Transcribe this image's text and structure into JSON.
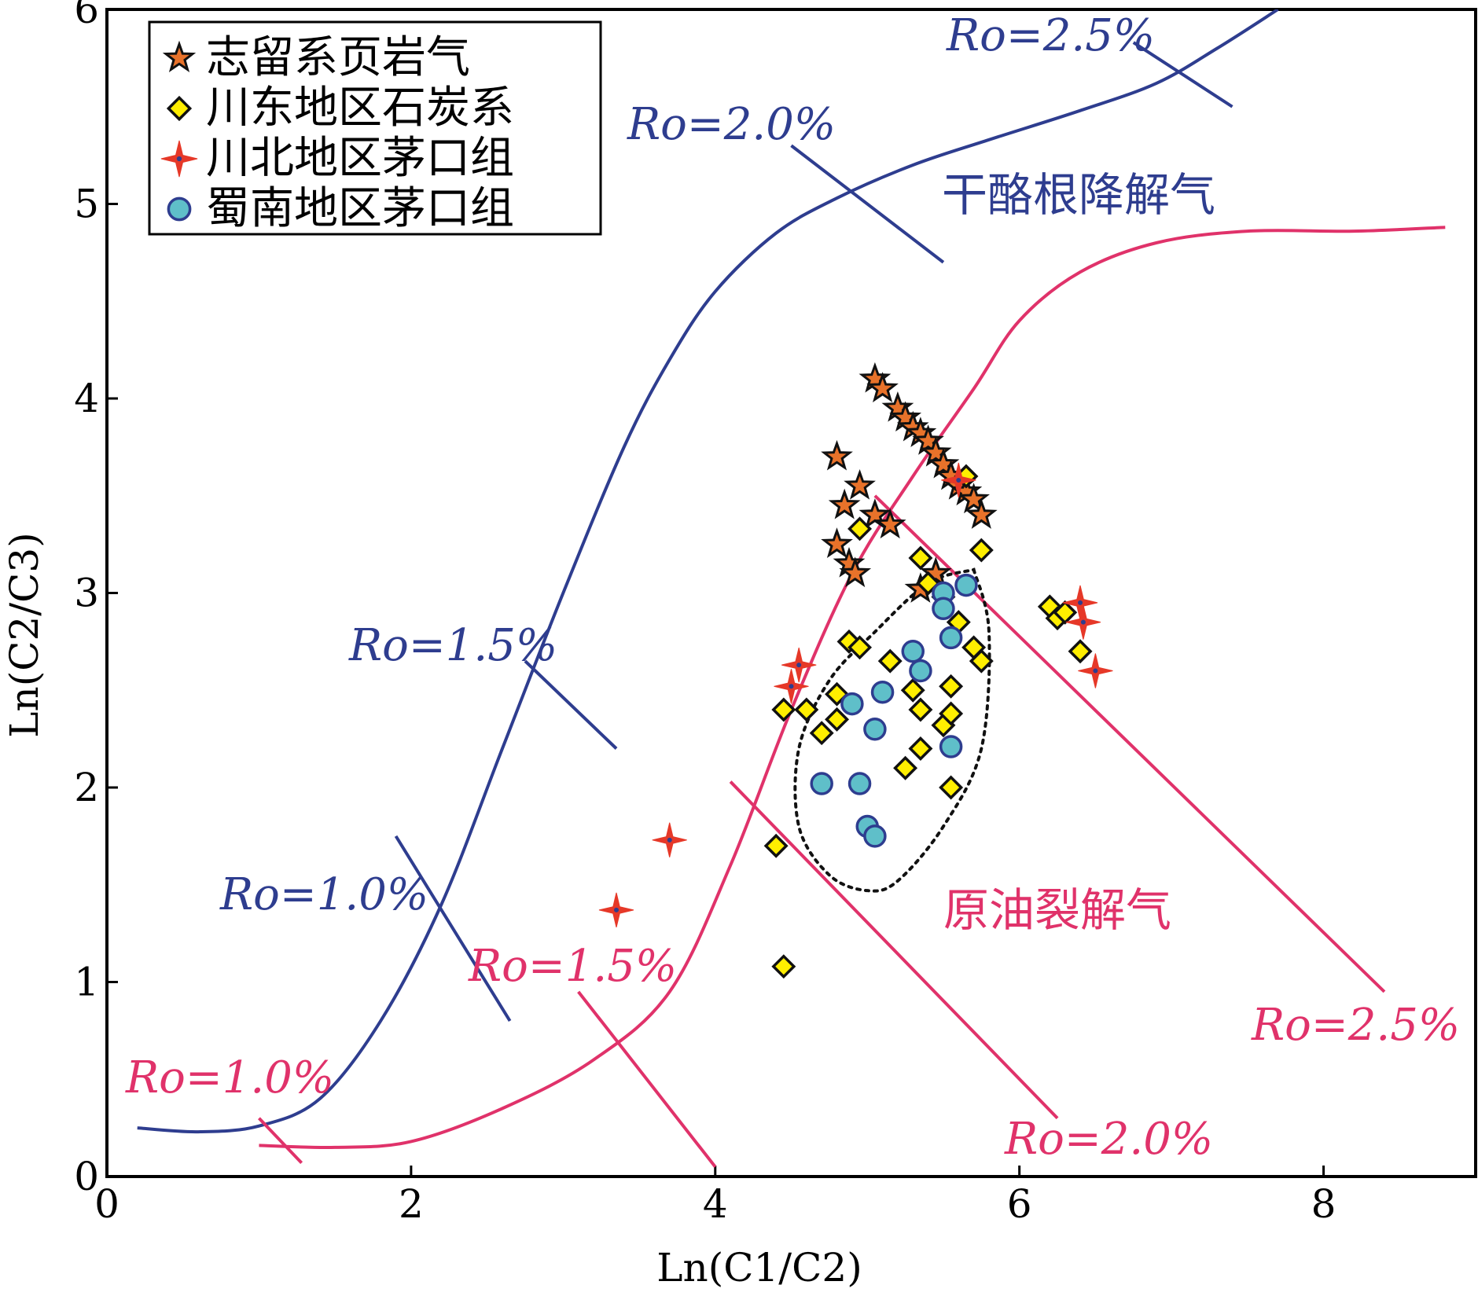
{
  "chart_data": {
    "type": "scatter",
    "title": "",
    "xlabel": "Ln(C1/C2)",
    "ylabel": "Ln(C2/C3)",
    "xlim": [
      0,
      9
    ],
    "ylim": [
      0,
      6
    ],
    "x_ticks": [
      "0",
      "2",
      "4",
      "6",
      "8"
    ],
    "y_ticks": [
      "0",
      "1",
      "2",
      "3",
      "4",
      "5",
      "6"
    ],
    "grid": false,
    "legend_position": "top-left",
    "colors": {
      "kerogen_curve": "#2e3d8f",
      "oil_curve": "#e0326a",
      "star_fill": "#e8722a",
      "diamond_fill": "#ffee00",
      "sparkle_fill": "#e63828",
      "circle_fill": "#5fbfc9"
    },
    "series": [
      {
        "name": "志留系页岩气",
        "marker": "star",
        "points": [
          [
            5.05,
            4.1
          ],
          [
            5.1,
            4.05
          ],
          [
            5.2,
            3.95
          ],
          [
            5.25,
            3.9
          ],
          [
            5.3,
            3.85
          ],
          [
            5.35,
            3.82
          ],
          [
            5.4,
            3.78
          ],
          [
            5.45,
            3.72
          ],
          [
            5.5,
            3.66
          ],
          [
            5.55,
            3.6
          ],
          [
            5.6,
            3.55
          ],
          [
            5.65,
            3.52
          ],
          [
            5.7,
            3.48
          ],
          [
            5.75,
            3.4
          ],
          [
            4.8,
            3.7
          ],
          [
            4.95,
            3.55
          ],
          [
            4.85,
            3.45
          ],
          [
            5.05,
            3.4
          ],
          [
            5.15,
            3.35
          ],
          [
            4.8,
            3.25
          ],
          [
            4.88,
            3.15
          ],
          [
            4.92,
            3.1
          ],
          [
            5.45,
            3.1
          ],
          [
            5.35,
            3.02
          ]
        ]
      },
      {
        "name": "川东地区石炭系",
        "marker": "diamond",
        "points": [
          [
            5.65,
            3.6
          ],
          [
            5.75,
            3.22
          ],
          [
            4.95,
            3.33
          ],
          [
            5.35,
            3.18
          ],
          [
            5.4,
            3.05
          ],
          [
            5.5,
            2.98
          ],
          [
            5.6,
            2.85
          ],
          [
            5.7,
            2.72
          ],
          [
            5.75,
            2.65
          ],
          [
            4.88,
            2.75
          ],
          [
            4.95,
            2.72
          ],
          [
            5.15,
            2.65
          ],
          [
            4.8,
            2.48
          ],
          [
            5.3,
            2.5
          ],
          [
            5.55,
            2.52
          ],
          [
            5.35,
            2.4
          ],
          [
            5.5,
            2.32
          ],
          [
            5.55,
            2.38
          ],
          [
            4.45,
            2.4
          ],
          [
            4.6,
            2.4
          ],
          [
            4.7,
            2.28
          ],
          [
            4.8,
            2.35
          ],
          [
            5.35,
            2.2
          ],
          [
            5.25,
            2.1
          ],
          [
            5.55,
            2.0
          ],
          [
            4.4,
            1.7
          ],
          [
            4.45,
            1.08
          ],
          [
            6.2,
            2.93
          ],
          [
            6.25,
            2.87
          ],
          [
            6.3,
            2.9
          ],
          [
            6.4,
            2.7
          ]
        ]
      },
      {
        "name": "川北地区茅口组",
        "marker": "sparkle",
        "points": [
          [
            5.6,
            3.58
          ],
          [
            4.55,
            2.63
          ],
          [
            4.5,
            2.52
          ],
          [
            3.7,
            1.73
          ],
          [
            3.35,
            1.37
          ],
          [
            6.4,
            2.95
          ],
          [
            6.42,
            2.85
          ],
          [
            6.5,
            2.6
          ]
        ]
      },
      {
        "name": "蜀南地区茅口组",
        "marker": "circle",
        "points": [
          [
            5.65,
            3.04
          ],
          [
            5.5,
            3.0
          ],
          [
            5.5,
            2.92
          ],
          [
            5.55,
            2.77
          ],
          [
            5.3,
            2.7
          ],
          [
            5.35,
            2.6
          ],
          [
            5.1,
            2.49
          ],
          [
            4.9,
            2.43
          ],
          [
            5.05,
            2.3
          ],
          [
            5.55,
            2.21
          ],
          [
            4.7,
            2.02
          ],
          [
            4.95,
            2.02
          ],
          [
            5.0,
            1.8
          ],
          [
            5.05,
            1.75
          ]
        ]
      }
    ],
    "curves": [
      {
        "id": "kerogen",
        "points": [
          [
            0.2,
            0.25
          ],
          [
            0.6,
            0.23
          ],
          [
            1.0,
            0.26
          ],
          [
            1.4,
            0.4
          ],
          [
            1.8,
            0.8
          ],
          [
            2.2,
            1.4
          ],
          [
            2.6,
            2.2
          ],
          [
            3.0,
            3.0
          ],
          [
            3.4,
            3.75
          ],
          [
            3.7,
            4.2
          ],
          [
            4.0,
            4.55
          ],
          [
            4.4,
            4.85
          ],
          [
            4.8,
            5.03
          ],
          [
            5.3,
            5.2
          ],
          [
            5.8,
            5.33
          ],
          [
            6.4,
            5.48
          ],
          [
            6.9,
            5.62
          ],
          [
            7.3,
            5.8
          ],
          [
            7.7,
            6.0
          ]
        ]
      },
      {
        "id": "oil-cracking",
        "points": [
          [
            1.0,
            0.16
          ],
          [
            1.5,
            0.15
          ],
          [
            2.0,
            0.18
          ],
          [
            2.6,
            0.35
          ],
          [
            3.2,
            0.6
          ],
          [
            3.7,
            0.95
          ],
          [
            4.1,
            1.6
          ],
          [
            4.5,
            2.4
          ],
          [
            4.9,
            3.1
          ],
          [
            5.3,
            3.6
          ],
          [
            5.7,
            4.05
          ],
          [
            6.0,
            4.4
          ],
          [
            6.4,
            4.65
          ],
          [
            6.9,
            4.8
          ],
          [
            7.5,
            4.86
          ],
          [
            8.2,
            4.86
          ],
          [
            8.8,
            4.88
          ]
        ]
      }
    ],
    "iso_maturity_lines": [
      {
        "curve": "kerogen",
        "label": "Ro=1.0%",
        "line": [
          [
            1.9,
            1.75
          ],
          [
            2.65,
            0.8
          ]
        ]
      },
      {
        "curve": "kerogen",
        "label": "Ro=1.5%",
        "line": [
          [
            2.75,
            2.65
          ],
          [
            3.35,
            2.2
          ]
        ]
      },
      {
        "curve": "kerogen",
        "label": "Ro=2.0%",
        "line": [
          [
            4.5,
            5.3
          ],
          [
            5.5,
            4.7
          ]
        ]
      },
      {
        "curve": "kerogen",
        "label": "Ro=2.5%",
        "line": [
          [
            6.75,
            5.83
          ],
          [
            7.4,
            5.5
          ]
        ]
      },
      {
        "curve": "oil-cracking",
        "label": "Ro=1.0%",
        "line": [
          [
            1.0,
            0.3
          ],
          [
            1.28,
            0.07
          ]
        ]
      },
      {
        "curve": "oil-cracking",
        "label": "Ro=1.5%",
        "line": [
          [
            3.1,
            0.95
          ],
          [
            4.0,
            0.05
          ]
        ]
      },
      {
        "curve": "oil-cracking",
        "label": "Ro=2.0%",
        "line": [
          [
            4.1,
            2.03
          ],
          [
            6.25,
            0.3
          ]
        ]
      },
      {
        "curve": "oil-cracking",
        "label": "Ro=2.5%",
        "line": [
          [
            5.05,
            3.5
          ],
          [
            8.4,
            0.95
          ]
        ]
      }
    ],
    "outline": [
      [
        5.7,
        3.12
      ],
      [
        5.8,
        2.8
      ],
      [
        5.75,
        2.2
      ],
      [
        5.5,
        1.8
      ],
      [
        5.2,
        1.52
      ],
      [
        5.0,
        1.47
      ],
      [
        4.75,
        1.55
      ],
      [
        4.55,
        1.8
      ],
      [
        4.55,
        2.2
      ],
      [
        4.75,
        2.55
      ],
      [
        5.05,
        2.8
      ],
      [
        5.4,
        3.05
      ],
      [
        5.7,
        3.12
      ]
    ],
    "region_labels": [
      {
        "text": "干酪根降解气",
        "color": "blue"
      },
      {
        "text": "原油裂解气",
        "color": "red"
      }
    ]
  }
}
